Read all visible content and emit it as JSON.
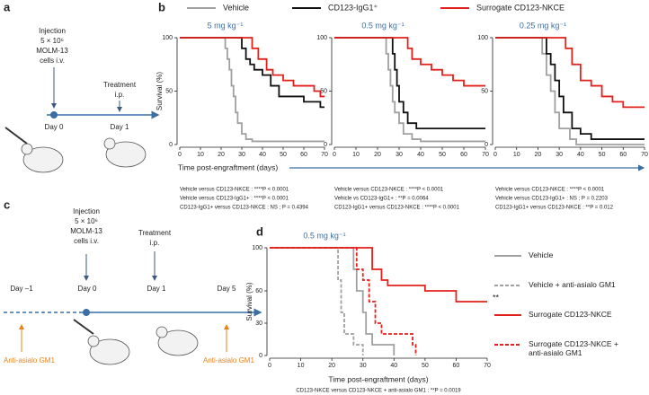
{
  "panels": [
    "a",
    "b",
    "c",
    "d"
  ],
  "diagram_a": {
    "injection": [
      "Injection",
      "5 × 10⁶",
      "MOLM-13",
      "cells i.v."
    ],
    "treatment": [
      "Treatment",
      "i.p."
    ],
    "days": [
      "Day 0",
      "Day 1"
    ]
  },
  "diagram_c": {
    "injection": [
      "Injection",
      "5 × 10⁶",
      "MOLM-13",
      "cells i.v."
    ],
    "treatment": [
      "Treatment",
      "i.p."
    ],
    "days": [
      "Day –1",
      "Day 0",
      "Day 1",
      "Day 5"
    ],
    "depletion": [
      "Anti-asialo GM1",
      "Anti-asialo GM1"
    ]
  },
  "stats_b": [
    [
      "Vehicle versus CD123-NKCE : ****P < 0.0001",
      "Vehicle versus CD123-IgG1+ : ****P < 0.0001",
      "CD123-IgG1+ versus CD123-NKCE : NS ; P = 0.4394"
    ],
    [
      "Vehicle versus CD123-NKCE : ****P < 0.0001",
      "Vehicle vs CD123-IgG1+ : **P = 0.0064",
      "CD123-IgG1+ versus CD123-NKCE : ****P < 0.0001"
    ],
    [
      "Vehicle versus CD123-NKCE : ****P < 0.0001",
      "Vehicle versus CD123-IgG1+ : NS ; P = 0.2203",
      "CD123-IgG1+ versus CD123-NKCE : **P = 0.012"
    ]
  ],
  "stats_d": "CD123-NKCE versus CD123-NKCE + anti-asialo GM1 : **P = 0.0019",
  "chart_data": [
    {
      "type": "line",
      "step": true,
      "title": "5 mg kg⁻¹",
      "ylabel": "Survival (%)",
      "xlabel": "Time post-engraftment (days)",
      "xlim": [
        0,
        70
      ],
      "xticks": [
        0,
        10,
        20,
        30,
        40,
        50,
        60,
        70
      ],
      "ylim": [
        0,
        100
      ],
      "yticks": [
        0,
        50,
        100
      ],
      "series": [
        {
          "name": "Vehicle",
          "color": "#a0a0a0",
          "x": [
            0,
            20,
            22,
            23,
            24,
            25,
            26,
            27,
            28,
            30,
            32,
            35,
            70
          ],
          "values": [
            100,
            100,
            90,
            80,
            70,
            55,
            45,
            30,
            20,
            10,
            5,
            3,
            3
          ]
        },
        {
          "name": "CD123-IgG1⁺",
          "color": "#111111",
          "x": [
            0,
            28,
            30,
            32,
            34,
            36,
            40,
            44,
            48,
            60,
            68,
            70
          ],
          "values": [
            100,
            100,
            90,
            80,
            75,
            70,
            65,
            55,
            45,
            40,
            35,
            35
          ]
        },
        {
          "name": "Surrogate CD123-NKCE",
          "color": "#e3211c",
          "x": [
            0,
            33,
            35,
            38,
            42,
            45,
            50,
            55,
            65,
            68,
            70
          ],
          "values": [
            100,
            100,
            90,
            80,
            70,
            65,
            60,
            55,
            50,
            45,
            45
          ]
        }
      ]
    },
    {
      "type": "line",
      "step": true,
      "title": "0.5 mg kg⁻¹",
      "xlim": [
        0,
        70
      ],
      "xticks": [
        0,
        10,
        20,
        30,
        40,
        50,
        60,
        70
      ],
      "ylim": [
        0,
        100
      ],
      "yticks": [
        0,
        50,
        100
      ],
      "series": [
        {
          "color": "#a0a0a0",
          "x": [
            0,
            22,
            24,
            25,
            26,
            27,
            28,
            30,
            32,
            36,
            40,
            70
          ],
          "values": [
            100,
            100,
            85,
            70,
            55,
            40,
            30,
            20,
            10,
            5,
            3,
            3
          ]
        },
        {
          "color": "#111111",
          "x": [
            0,
            25,
            27,
            28,
            29,
            30,
            32,
            34,
            38,
            70
          ],
          "values": [
            100,
            100,
            85,
            70,
            55,
            40,
            30,
            20,
            15,
            15
          ]
        },
        {
          "color": "#e3211c",
          "x": [
            0,
            32,
            34,
            36,
            40,
            45,
            50,
            55,
            60,
            70
          ],
          "values": [
            100,
            100,
            90,
            80,
            75,
            70,
            65,
            60,
            55,
            55
          ]
        }
      ]
    },
    {
      "type": "line",
      "step": true,
      "title": "0.25 mg kg⁻¹",
      "xlim": [
        0,
        70
      ],
      "xticks": [
        0,
        10,
        20,
        30,
        40,
        50,
        60,
        70
      ],
      "ylim": [
        0,
        100
      ],
      "yticks": [
        0,
        50,
        100
      ],
      "series": [
        {
          "color": "#a0a0a0",
          "x": [
            0,
            20,
            22,
            24,
            26,
            28,
            30,
            35,
            38,
            70
          ],
          "values": [
            100,
            100,
            85,
            65,
            50,
            30,
            15,
            5,
            0,
            0
          ]
        },
        {
          "color": "#111111",
          "x": [
            0,
            22,
            24,
            26,
            28,
            30,
            32,
            36,
            40,
            45,
            70
          ],
          "values": [
            100,
            100,
            85,
            75,
            60,
            45,
            30,
            15,
            10,
            5,
            5
          ]
        },
        {
          "color": "#e3211c",
          "x": [
            0,
            30,
            33,
            36,
            40,
            45,
            50,
            55,
            60,
            70
          ],
          "values": [
            100,
            100,
            90,
            75,
            60,
            55,
            45,
            40,
            35,
            35
          ]
        }
      ]
    },
    {
      "type": "line",
      "step": true,
      "title": "0.5 mg kg⁻¹",
      "ylabel": "Survival (%)",
      "xlabel": "Time post-engraftment (days)",
      "annotation": "**",
      "xlim": [
        0,
        70
      ],
      "xticks": [
        0,
        10,
        20,
        30,
        40,
        50,
        60,
        70
      ],
      "ylim": [
        0,
        100
      ],
      "yticks": [
        0,
        30,
        60,
        100
      ],
      "series": [
        {
          "name": "Vehicle",
          "color": "#a0a0a0",
          "dashed": false,
          "x": [
            0,
            25,
            27,
            28,
            30,
            31,
            33,
            40
          ],
          "values": [
            100,
            100,
            80,
            60,
            40,
            20,
            10,
            0
          ]
        },
        {
          "name": "Vehicle + anti-asialo GM1",
          "color": "#a0a0a0",
          "dashed": true,
          "x": [
            0,
            20,
            22,
            23,
            24,
            27,
            30
          ],
          "values": [
            100,
            100,
            70,
            40,
            20,
            10,
            0
          ]
        },
        {
          "name": "Surrogate CD123-NKCE",
          "color": "#e3211c",
          "dashed": false,
          "x": [
            0,
            30,
            33,
            36,
            38,
            50,
            60,
            70
          ],
          "values": [
            100,
            100,
            80,
            70,
            65,
            60,
            50,
            50
          ]
        },
        {
          "name": "Surrogate CD123-NKCE + anti-asialo GM1",
          "color": "#e3211c",
          "dashed": true,
          "x": [
            0,
            26,
            28,
            30,
            32,
            34,
            36,
            46,
            47
          ],
          "values": [
            100,
            100,
            80,
            70,
            50,
            30,
            20,
            10,
            0
          ]
        }
      ]
    }
  ]
}
